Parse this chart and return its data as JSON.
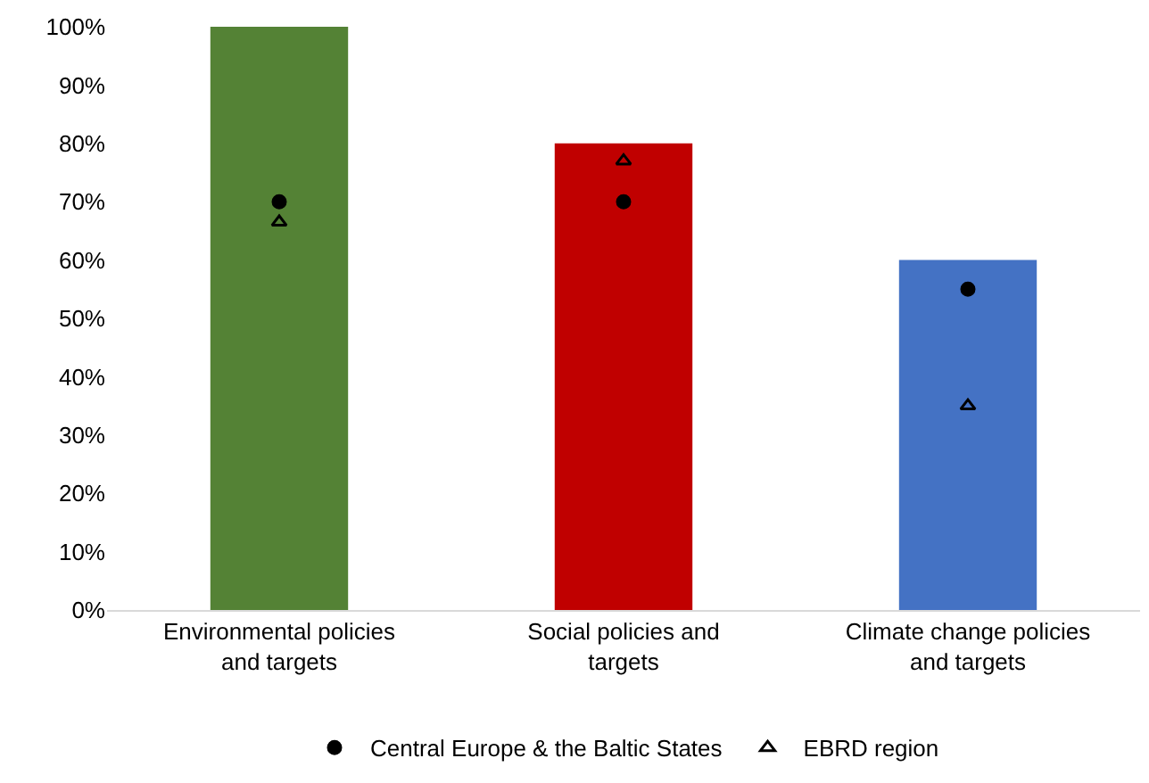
{
  "chart_data": {
    "type": "bar",
    "categories": [
      "Environmental policies and targets",
      "Social policies and targets",
      "Climate change policies and targets"
    ],
    "series": [
      {
        "colors": [
          "#548235",
          "#c00000",
          "#4472c4"
        ],
        "values": [
          100,
          80,
          60
        ]
      },
      {
        "type": "scatter",
        "name": "Central Europe & the Baltic States",
        "color": "#000000",
        "marker": "circle",
        "values": [
          70,
          70,
          55
        ]
      },
      {
        "type": "scatter",
        "name": "EBRD region",
        "color": "#000000",
        "marker": "triangle",
        "values": [
          66.5,
          77,
          35
        ]
      }
    ],
    "ylim": [
      0,
      100
    ],
    "yticks": [
      {
        "value": 0,
        "label": "0%"
      },
      {
        "value": 10,
        "label": "10%"
      },
      {
        "value": 20,
        "label": "20%"
      },
      {
        "value": 30,
        "label": "30%"
      },
      {
        "value": 40,
        "label": "40%"
      },
      {
        "value": 50,
        "label": "50%"
      },
      {
        "value": 60,
        "label": "60%"
      },
      {
        "value": 70,
        "label": "70%"
      },
      {
        "value": 80,
        "label": "80%"
      },
      {
        "value": 90,
        "label": "90%"
      },
      {
        "value": 100,
        "label": "100%"
      }
    ],
    "grid": false,
    "legend": "bottom"
  }
}
